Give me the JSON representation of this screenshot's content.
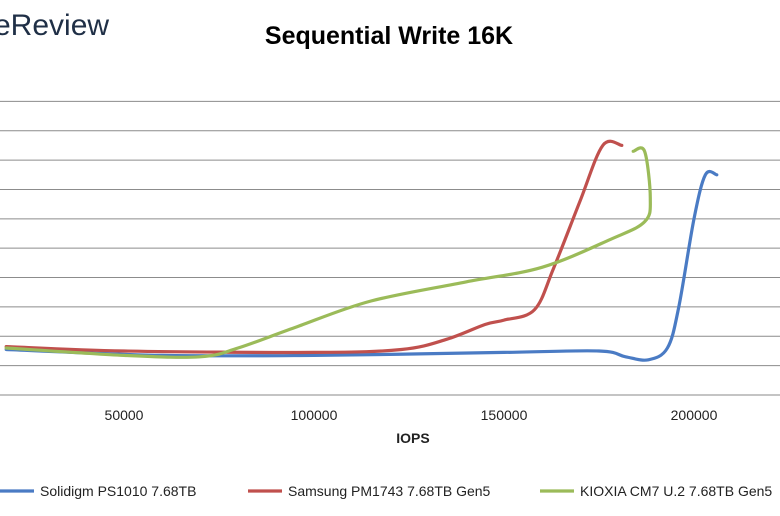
{
  "brand": {
    "text": "eReview"
  },
  "chart_data": {
    "type": "line",
    "title": "Sequential Write 16K",
    "xlabel": "IOPS",
    "ylabel": "",
    "xlim": [
      20000,
      220000
    ],
    "ylim": [
      0,
      11
    ],
    "x_ticks": [
      50000,
      100000,
      150000,
      200000
    ],
    "x_tick_labels": [
      "50000",
      "100000",
      "150000",
      "200000"
    ],
    "y_gridlines": [
      1,
      2,
      3,
      4,
      5,
      6,
      7,
      8,
      9,
      10
    ],
    "grid": true,
    "legend_position": "bottom",
    "series": [
      {
        "name": "Solidigm PS1010 7.68TB",
        "color": "#4a7bc4",
        "x": [
          19000,
          60000,
          100000,
          150000,
          175000,
          182000,
          188000,
          193000,
          196000,
          200000,
          203000,
          206000
        ],
        "y": [
          1.55,
          1.35,
          1.35,
          1.45,
          1.5,
          1.3,
          1.2,
          1.6,
          3.0,
          6.0,
          7.5,
          7.5
        ]
      },
      {
        "name": "Samsung PM1743 7.68TB Gen5",
        "color": "#c0504d",
        "x": [
          19000,
          50000,
          100000,
          123000,
          135000,
          145000,
          150000,
          158000,
          163000,
          170000,
          176000,
          181000
        ],
        "y": [
          1.65,
          1.5,
          1.45,
          1.55,
          1.9,
          2.4,
          2.55,
          2.9,
          4.3,
          6.6,
          8.5,
          8.5
        ]
      },
      {
        "name": "KIOXIA CM7 U.2 7.68TB Gen5",
        "color": "#9bbb59",
        "x": [
          19000,
          50000,
          70000,
          80000,
          95000,
          115000,
          140000,
          160000,
          178000,
          187000,
          188500,
          187000,
          184000
        ],
        "y": [
          1.6,
          1.35,
          1.3,
          1.6,
          2.3,
          3.2,
          3.85,
          4.35,
          5.3,
          5.9,
          6.7,
          8.3,
          8.3
        ]
      }
    ]
  }
}
